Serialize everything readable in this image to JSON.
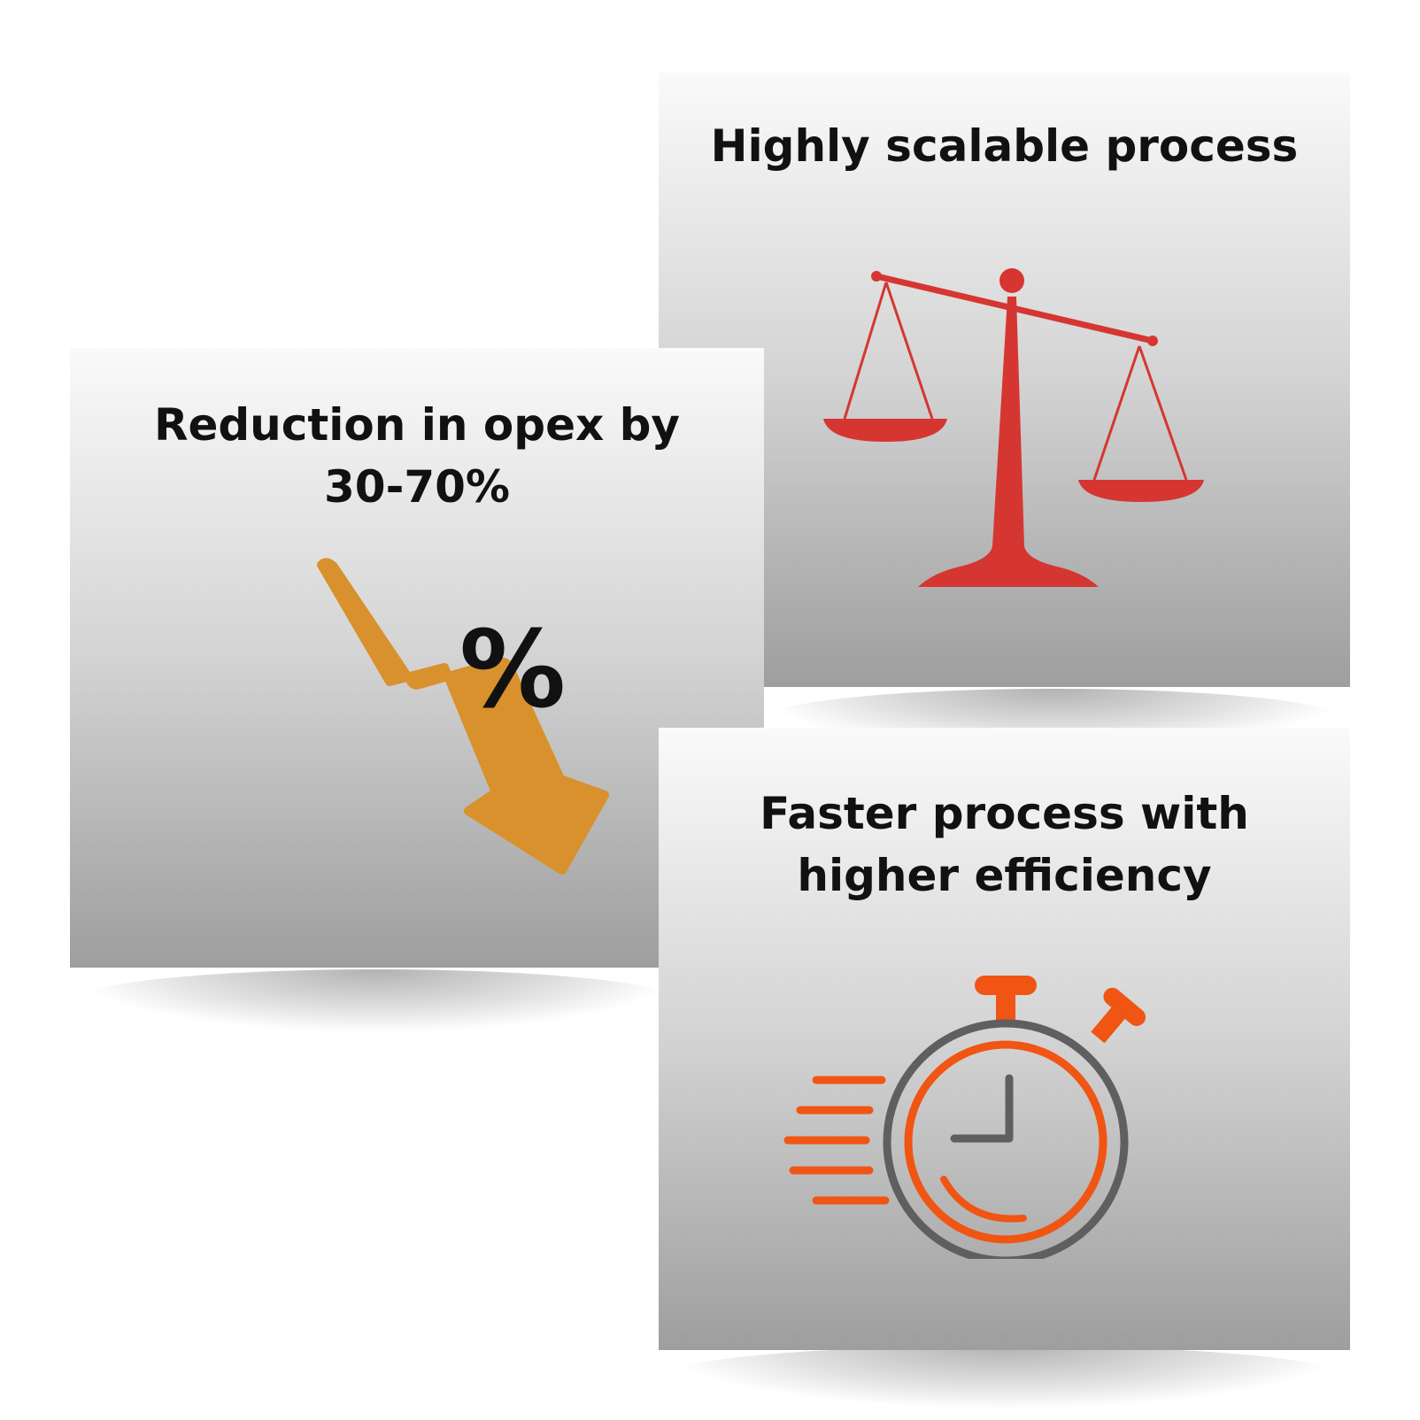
{
  "cards": [
    {
      "title": "Highly scalable process",
      "icon": "balance-scale-icon"
    },
    {
      "title_line1": "Reduction in opex by",
      "title_line2": "30-70%",
      "icon": "percent-down-arrow-icon",
      "icon_text": "%"
    },
    {
      "title_line1": "Faster process with",
      "title_line2": "higher efficiency",
      "icon": "stopwatch-icon"
    }
  ],
  "colors": {
    "scale": "#d63631",
    "arrow": "#d8912c",
    "percent": "#111111",
    "stopwatch_accent": "#f05514",
    "stopwatch_ring": "#5f5f5f"
  }
}
